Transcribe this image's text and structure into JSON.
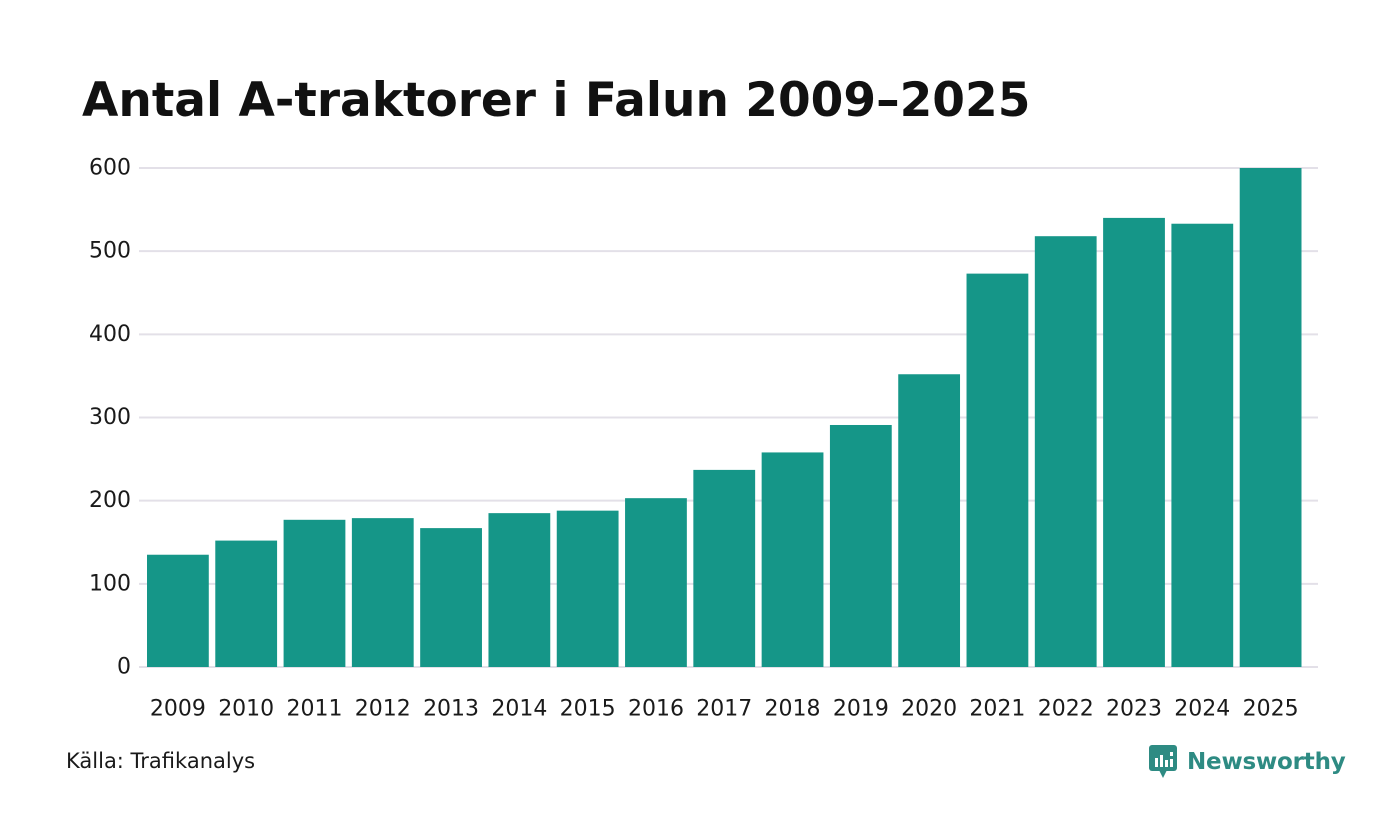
{
  "chart_data": {
    "type": "bar",
    "title": "Antal A-traktorer i Falun 2009–2025",
    "categories": [
      "2009",
      "2010",
      "2011",
      "2012",
      "2013",
      "2014",
      "2015",
      "2016",
      "2017",
      "2018",
      "2019",
      "2020",
      "2021",
      "2022",
      "2023",
      "2024",
      "2025"
    ],
    "values": [
      135,
      152,
      177,
      179,
      167,
      185,
      188,
      203,
      237,
      258,
      291,
      352,
      473,
      518,
      540,
      533,
      600
    ],
    "ylim": [
      0,
      600
    ],
    "yticks": [
      0,
      100,
      200,
      300,
      400,
      500,
      600
    ],
    "xlabel": "",
    "ylabel": "",
    "grid": true,
    "bar_color": "#159688",
    "grid_color": "#e3e0e8"
  },
  "footer": {
    "source": "Källa: Trafikanalys",
    "brand": "Newsworthy",
    "brand_color": "#2e8b83",
    "brand_icon": "newsworthy-logo-icon"
  }
}
